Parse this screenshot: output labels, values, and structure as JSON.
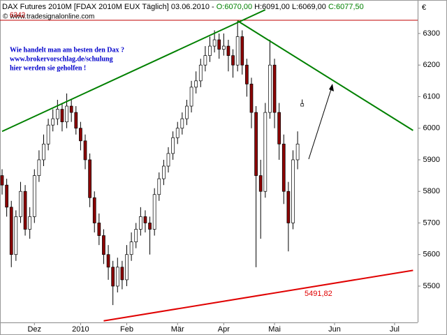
{
  "chart_data": {
    "type": "candlestick",
    "header": [
      "DAX Futures 2010M [FDAX 2010M EUX  Täglich] 03.06.2010 - ",
      "O:6070,00",
      " H:6091,00 L:6069,00 ",
      "C:6077,50"
    ],
    "copyright": "© www.tradesignalonline.com",
    "currency": "€",
    "annotations": [
      "Wie handelt man am besten den Dax ?",
      "www.brokervorschlag.de/schulung",
      "hier werden sie geholfen !"
    ],
    "categories": [
      null,
      null,
      null,
      null,
      null,
      null,
      null,
      "Dez",
      null,
      null,
      null,
      null,
      null,
      null,
      null,
      null,
      null,
      "2010",
      null,
      null,
      null,
      null,
      null,
      null,
      null,
      null,
      null,
      "Feb",
      null,
      null,
      null,
      null,
      null,
      null,
      null,
      null,
      null,
      null,
      "Mär",
      null,
      null,
      null,
      null,
      null,
      null,
      null,
      null,
      null,
      "Apr",
      null,
      null,
      null,
      null,
      null,
      null,
      null,
      null,
      null,
      null,
      "Mai",
      null,
      null,
      null,
      null,
      null,
      null,
      null,
      null,
      null,
      null,
      null,
      null,
      "Jun",
      null,
      null,
      null,
      null,
      null,
      null,
      null,
      null,
      null,
      null,
      null,
      null,
      "Jul",
      null,
      null,
      null,
      null
    ],
    "open": [
      5850,
      5820,
      5750,
      5600,
      5720,
      5800,
      5680,
      5720,
      5850,
      5900,
      5950,
      6010,
      6030,
      6060,
      6020,
      6070,
      6050,
      6000,
      5960,
      5900,
      5780,
      5700,
      5660,
      5600,
      5560,
      5500,
      5560,
      5520,
      5600,
      5640,
      5680,
      5720,
      5700,
      5680,
      5790,
      5840,
      5880,
      5920,
      5970,
      6000,
      6030,
      6070,
      6130,
      6150,
      6200,
      6230,
      6260,
      6280,
      6250,
      6260,
      6230,
      6200,
      6290,
      6200,
      6140,
      6050,
      5850,
      5800,
      6050,
      6200,
      6050,
      5950,
      5800,
      5700,
      5900,
      6070,
      null,
      null,
      null,
      null,
      null,
      null,
      null,
      null,
      null,
      null,
      null,
      null,
      null,
      null,
      null,
      null,
      null,
      null,
      null,
      null,
      null,
      null,
      null,
      null
    ],
    "high": [
      5870,
      5840,
      5770,
      5740,
      5830,
      5820,
      5750,
      5870,
      5930,
      5980,
      6030,
      6060,
      6090,
      6080,
      6110,
      6090,
      6070,
      6020,
      5980,
      5920,
      5800,
      5730,
      5680,
      5630,
      5580,
      5590,
      5580,
      5630,
      5670,
      5700,
      5750,
      5740,
      5720,
      5810,
      5860,
      5900,
      5940,
      5990,
      6020,
      6050,
      6090,
      6150,
      6180,
      6220,
      6260,
      6290,
      6310,
      6300,
      6300,
      6280,
      6250,
      6340,
      6310,
      6220,
      6160,
      6070,
      5900,
      6080,
      6280,
      6220,
      6080,
      5980,
      5830,
      5930,
      5990,
      6091,
      null,
      null,
      null,
      null,
      null,
      null,
      null,
      null,
      null,
      null,
      null,
      null,
      null,
      null,
      null,
      null,
      null,
      null,
      null,
      null,
      null,
      null,
      null,
      null
    ],
    "low": [
      5790,
      5720,
      5560,
      5580,
      5700,
      5660,
      5650,
      5700,
      5830,
      5880,
      5930,
      5990,
      6010,
      5990,
      6000,
      6020,
      5980,
      5930,
      5870,
      5750,
      5670,
      5630,
      5570,
      5520,
      5440,
      5480,
      5490,
      5500,
      5580,
      5620,
      5660,
      5670,
      5600,
      5660,
      5770,
      5820,
      5860,
      5900,
      5950,
      5980,
      6010,
      6050,
      6110,
      6130,
      6180,
      6210,
      6240,
      6220,
      6230,
      6180,
      6160,
      6180,
      6170,
      6100,
      6000,
      5560,
      5650,
      5780,
      6030,
      6000,
      5900,
      5760,
      5610,
      5680,
      5870,
      6069,
      null,
      null,
      null,
      null,
      null,
      null,
      null,
      null,
      null,
      null,
      null,
      null,
      null,
      null,
      null,
      null,
      null,
      null,
      null,
      null,
      null,
      null,
      null,
      null
    ],
    "close": [
      5820,
      5750,
      5600,
      5720,
      5800,
      5680,
      5720,
      5850,
      5900,
      5950,
      6010,
      6030,
      6060,
      6020,
      6070,
      6050,
      6000,
      5960,
      5900,
      5780,
      5700,
      5660,
      5600,
      5560,
      5500,
      5560,
      5520,
      5600,
      5640,
      5680,
      5720,
      5700,
      5680,
      5790,
      5840,
      5880,
      5920,
      5970,
      6000,
      6030,
      6070,
      6130,
      6150,
      6200,
      6230,
      6260,
      6280,
      6250,
      6260,
      6230,
      6200,
      6290,
      6200,
      6140,
      6050,
      5850,
      5800,
      6050,
      6200,
      6050,
      5950,
      5800,
      5700,
      5900,
      5950,
      6077.5,
      null,
      null,
      null,
      null,
      null,
      null,
      null,
      null,
      null,
      null,
      null,
      null,
      null,
      null,
      null,
      null,
      null,
      null,
      null,
      null,
      null,
      null,
      null,
      null
    ],
    "up_color": "#ffffff",
    "down_color": "#8b0000",
    "ylim": [
      5385,
      6406
    ],
    "yticks": [
      5500,
      5600,
      5700,
      5800,
      5900,
      6000,
      6100,
      6200,
      6300
    ],
    "trendlines": [
      {
        "from": [
          0,
          5990
        ],
        "to": [
          57,
          6375
        ],
        "color": "#008000"
      },
      {
        "from": [
          51,
          6340
        ],
        "to": [
          89,
          5993
        ],
        "color": "#008000"
      },
      {
        "from": [
          22,
          5390
        ],
        "to": [
          89,
          5550
        ],
        "color": "#e00000",
        "label": "5491,82"
      }
    ],
    "hline": {
      "value": 6342,
      "label": "6342",
      "color": "#c00000"
    }
  }
}
